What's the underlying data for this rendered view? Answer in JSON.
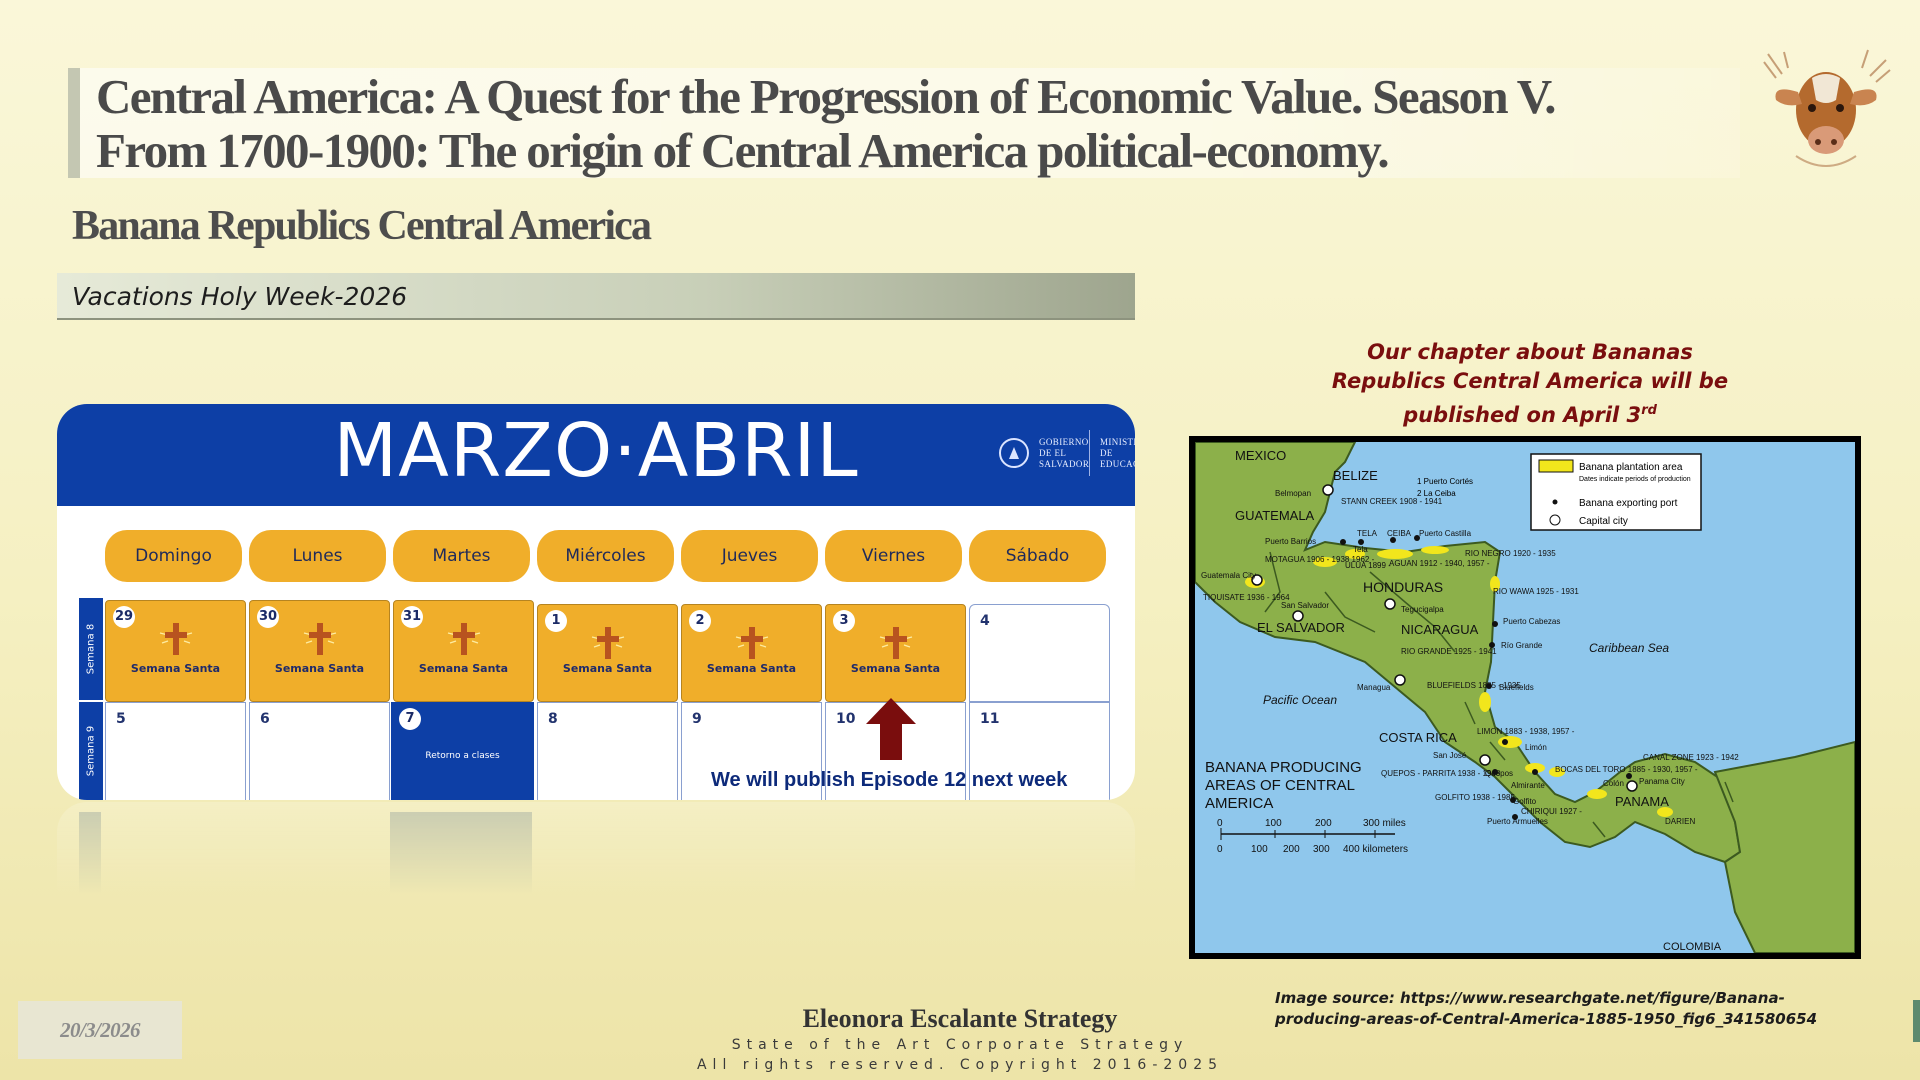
{
  "slide": {
    "title_line1": "Central America:  A Quest for the Progression of  Economic Value. Season V.",
    "title_line2": "From 1700-1900: The origin of  Central America political-economy.",
    "subtitle": "Banana Republics Central America",
    "section_bar": "Vacations Holy Week-2026",
    "chapter_note_text": "Our chapter about Bananas Republics Central America will be published on April 3",
    "chapter_note_sup": "rd",
    "image_source": "Image source: https://www.researchgate.net/figure/Banana-producing-areas-of-Central-America-1885-1950_fig6_341580654",
    "logo": "cow-head-icon"
  },
  "calendar": {
    "title": "MARZO·ABRIL",
    "ministry_left": "GOBIERNO DE EL SALVADOR",
    "ministry_right": "MINISTERIO DE EDUCACIÓN",
    "days": [
      "Domingo",
      "Lunes",
      "Martes",
      "Miércoles",
      "Jueves",
      "Viernes",
      "Sábado"
    ],
    "weeks": [
      {
        "label": "Semana 8",
        "cells": [
          {
            "num": "29",
            "event": "Semana Santa"
          },
          {
            "num": "30",
            "event": "Semana Santa"
          },
          {
            "num": "31",
            "event": "Semana Santa"
          },
          {
            "num": "1",
            "event": "Semana Santa"
          },
          {
            "num": "2",
            "event": "Semana Santa"
          },
          {
            "num": "3",
            "event": "Semana Santa"
          },
          {
            "num": "4",
            "event": ""
          }
        ]
      },
      {
        "label": "Semana 9",
        "cells": [
          {
            "num": "5",
            "event": ""
          },
          {
            "num": "6",
            "event": ""
          },
          {
            "num": "7",
            "event": "Retorno a clases"
          },
          {
            "num": "8",
            "event": ""
          },
          {
            "num": "9",
            "event": ""
          },
          {
            "num": "10",
            "event": ""
          },
          {
            "num": "11",
            "event": ""
          }
        ]
      }
    ],
    "publish_note": "We will publish Episode 12 next week"
  },
  "map": {
    "countries": [
      "MEXICO",
      "BELIZE",
      "GUATEMALA",
      "HONDURAS",
      "EL SALVADOR",
      "NICARAGUA",
      "COSTA RICA",
      "PANAMA",
      "COLOMBIA"
    ],
    "water": [
      "Caribbean   Sea",
      "Pacific  Ocean"
    ],
    "legend_title": "Banana plantation area",
    "legend_note": "Dates indicate periods of production",
    "legend_port": "Banana exporting port",
    "legend_capital": "Capital city",
    "ports_numbered": [
      "1  Puerto Cortés",
      "2  La Ceiba"
    ],
    "map_title": [
      "BANANA  PRODUCING",
      "AREAS  OF CENTRAL",
      "AMERICA"
    ],
    "scale_miles": [
      "0",
      "100",
      "200",
      "300 miles"
    ],
    "scale_km": [
      "0",
      "100",
      "200",
      "300",
      "400 kilometers"
    ],
    "places": [
      "Belmopan",
      "STANN CREEK 1908 - 1941",
      "Puerto Barrios",
      "TELA",
      "CEIBA",
      "Puerto Castilla",
      "MOTAGUA 1906 - 1938 1962 -",
      "Tela",
      "ULUA 1899 -",
      "AGUAN 1912 - 1940, 1957 -",
      "RIO NEGRO 1920 - 1935",
      "Guatemala City",
      "TIQUISATE 1936 - 1964",
      "San Salvador",
      "Tegucigalpa",
      "RIO WAWA 1925 - 1931",
      "Puerto Cabezas",
      "RIO GRANDE 1925 - 1941",
      "Río Grande",
      "Managua",
      "BLUEFIELDS 1885 - 1935",
      "Bluefields",
      "LIMON 1883 - 1938, 1957 -",
      "Limón",
      "San José",
      "QUEPOS - PARRITA 1938 - 1948",
      "Quepos",
      "Almirante",
      "BOCAS DEL TORO 1885 - 1930, 1957 -",
      "GOLFITO 1938 - 1985",
      "Golfito",
      "Puerto Armuelles",
      "CHIRIQUI 1927 -",
      "CANAL ZONE 1923 - 1942",
      "Colón",
      "Panama City",
      "DARIEN"
    ]
  },
  "footer": {
    "date": "20/3/2026",
    "company": "Eleonora Escalante Strategy",
    "tagline": "State of the Art Corporate Strategy",
    "copyright": "All rights reserved. Copyright 2016-2025"
  },
  "colors": {
    "calendar_blue": "#0d3fa6",
    "holiday_orange": "#f0ae2a",
    "note_red": "#7a0e0e",
    "arrow_red": "#7a0d0d",
    "map_land": "#8cb04a",
    "map_water": "#8fc7ec",
    "plantation_yellow": "#f2e61c"
  }
}
